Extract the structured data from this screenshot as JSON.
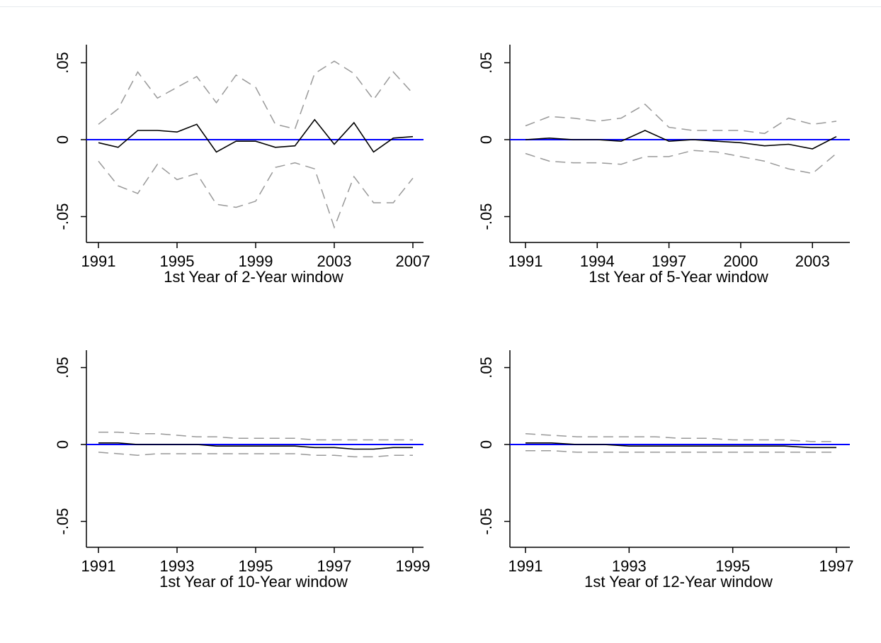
{
  "chart_data": [
    {
      "type": "line",
      "xlabel": "1st Year of 2-Year window",
      "ylabel": "",
      "xlim": [
        1991,
        2007
      ],
      "ylim": [
        -0.068,
        0.062
      ],
      "xticks": [
        1991,
        1995,
        1999,
        2003,
        2007
      ],
      "xtick_labels": [
        "1991",
        "1995",
        "1999",
        "2003",
        "2007"
      ],
      "yticks": [
        -0.05,
        0,
        0.05
      ],
      "ytick_labels": [
        "-.05",
        "0",
        ".05"
      ],
      "reference_line": {
        "y": 0,
        "color": "#0000ff"
      },
      "x": [
        1991,
        1992,
        1993,
        1994,
        1995,
        1996,
        1997,
        1998,
        1999,
        2000,
        2001,
        2002,
        2003,
        2004,
        2005,
        2006,
        2007
      ],
      "series": [
        {
          "style": "solid",
          "color": "#000000",
          "values": [
            -0.002,
            -0.005,
            0.006,
            0.006,
            0.005,
            0.01,
            -0.008,
            -0.001,
            -0.001,
            -0.005,
            -0.004,
            0.013,
            -0.003,
            0.011,
            -0.008,
            0.001,
            0.002
          ]
        },
        {
          "style": "dashed",
          "color": "#999999",
          "values": [
            0.01,
            0.02,
            0.044,
            0.027,
            0.034,
            0.041,
            0.024,
            0.042,
            0.034,
            0.01,
            0.007,
            0.043,
            0.051,
            0.043,
            0.026,
            0.044,
            0.03
          ]
        },
        {
          "style": "dashed",
          "color": "#999999",
          "values": [
            -0.014,
            -0.03,
            -0.035,
            -0.016,
            -0.026,
            -0.022,
            -0.042,
            -0.044,
            -0.04,
            -0.018,
            -0.015,
            -0.019,
            -0.057,
            -0.024,
            -0.041,
            -0.041,
            -0.025
          ]
        }
      ]
    },
    {
      "type": "line",
      "xlabel": "1st Year of 5-Year window",
      "ylabel": "",
      "xlim": [
        1991,
        2004
      ],
      "ylim": [
        -0.068,
        0.062
      ],
      "xticks": [
        1991,
        1994,
        1997,
        2000,
        2003
      ],
      "xtick_labels": [
        "1991",
        "1994",
        "1997",
        "2000",
        "2003"
      ],
      "yticks": [
        -0.05,
        0,
        0.05
      ],
      "ytick_labels": [
        "-.05",
        "0",
        ".05"
      ],
      "reference_line": {
        "y": 0,
        "color": "#0000ff"
      },
      "x": [
        1991,
        1992,
        1993,
        1994,
        1995,
        1996,
        1997,
        1998,
        1999,
        2000,
        2001,
        2002,
        2003,
        2004
      ],
      "series": [
        {
          "style": "solid",
          "color": "#000000",
          "values": [
            0,
            0.001,
            0,
            0,
            -0.001,
            0.006,
            -0.001,
            0,
            -0.001,
            -0.002,
            -0.004,
            -0.003,
            -0.006,
            0.002
          ]
        },
        {
          "style": "dashed",
          "color": "#999999",
          "values": [
            0.009,
            0.015,
            0.014,
            0.012,
            0.014,
            0.023,
            0.008,
            0.006,
            0.006,
            0.006,
            0.004,
            0.014,
            0.01,
            0.012
          ]
        },
        {
          "style": "dashed",
          "color": "#999999",
          "values": [
            -0.009,
            -0.014,
            -0.015,
            -0.015,
            -0.016,
            -0.011,
            -0.011,
            -0.007,
            -0.008,
            -0.011,
            -0.014,
            -0.019,
            -0.022,
            -0.009
          ]
        }
      ]
    },
    {
      "type": "line",
      "xlabel": "1st Year of 10-Year window",
      "ylabel": "",
      "xlim": [
        1991,
        1999
      ],
      "ylim": [
        -0.068,
        0.062
      ],
      "xticks": [
        1991,
        1993,
        1995,
        1997,
        1999
      ],
      "xtick_labels": [
        "1991",
        "1993",
        "1995",
        "1997",
        "1999"
      ],
      "yticks": [
        -0.05,
        0,
        0.05
      ],
      "ytick_labels": [
        "-.05",
        "0",
        ".05"
      ],
      "reference_line": {
        "y": 0,
        "color": "#0000ff"
      },
      "x": [
        1991,
        1991.5,
        1992,
        1992.5,
        1993,
        1993.5,
        1994,
        1994.5,
        1995,
        1995.5,
        1996,
        1996.5,
        1997,
        1997.5,
        1998,
        1998.5,
        1999
      ],
      "series": [
        {
          "style": "solid",
          "color": "#000000",
          "values": [
            0.001,
            0.001,
            0,
            0,
            0,
            0,
            -0.001,
            -0.001,
            -0.001,
            -0.001,
            -0.001,
            -0.002,
            -0.002,
            -0.003,
            -0.003,
            -0.002,
            -0.002
          ]
        },
        {
          "style": "dashed",
          "color": "#999999",
          "values": [
            0.008,
            0.008,
            0.007,
            0.007,
            0.006,
            0.005,
            0.005,
            0.004,
            0.004,
            0.004,
            0.004,
            0.003,
            0.003,
            0.003,
            0.003,
            0.003,
            0.003
          ]
        },
        {
          "style": "dashed",
          "color": "#999999",
          "values": [
            -0.005,
            -0.006,
            -0.007,
            -0.006,
            -0.006,
            -0.006,
            -0.006,
            -0.006,
            -0.006,
            -0.006,
            -0.006,
            -0.007,
            -0.007,
            -0.008,
            -0.008,
            -0.007,
            -0.007
          ]
        }
      ]
    },
    {
      "type": "line",
      "xlabel": "1st Year of 12-Year window",
      "ylabel": "",
      "xlim": [
        1991,
        1997
      ],
      "ylim": [
        -0.068,
        0.062
      ],
      "xticks": [
        1991,
        1993,
        1995,
        1997
      ],
      "xtick_labels": [
        "1991",
        "1993",
        "1995",
        "1997"
      ],
      "yticks": [
        -0.05,
        0,
        0.05
      ],
      "ytick_labels": [
        "-.05",
        "0",
        ".05"
      ],
      "reference_line": {
        "y": 0,
        "color": "#0000ff"
      },
      "x": [
        1991,
        1991.5,
        1992,
        1992.5,
        1993,
        1993.5,
        1994,
        1994.5,
        1995,
        1995.5,
        1996,
        1996.5,
        1997
      ],
      "series": [
        {
          "style": "solid",
          "color": "#000000",
          "values": [
            0.001,
            0.001,
            0,
            0,
            -0.001,
            -0.001,
            -0.001,
            -0.001,
            -0.001,
            -0.001,
            -0.001,
            -0.002,
            -0.002
          ]
        },
        {
          "style": "dashed",
          "color": "#999999",
          "values": [
            0.007,
            0.006,
            0.005,
            0.005,
            0.005,
            0.005,
            0.004,
            0.004,
            0.003,
            0.003,
            0.003,
            0.002,
            0.002
          ]
        },
        {
          "style": "dashed",
          "color": "#999999",
          "values": [
            -0.004,
            -0.004,
            -0.005,
            -0.005,
            -0.005,
            -0.005,
            -0.005,
            -0.005,
            -0.005,
            -0.005,
            -0.005,
            -0.005,
            -0.005
          ]
        }
      ]
    }
  ]
}
